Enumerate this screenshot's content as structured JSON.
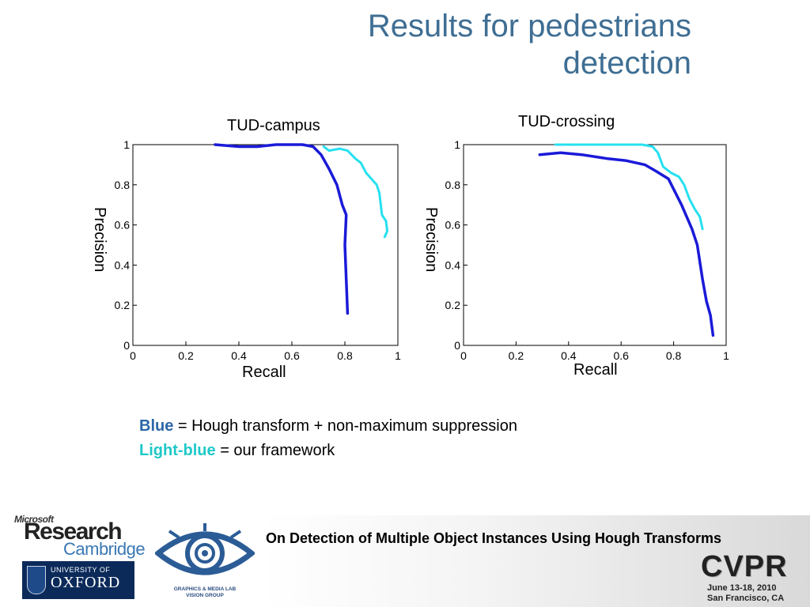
{
  "slide_title_line1": "Results for pedestrians",
  "slide_title_line2": "detection",
  "chart_data": [
    {
      "type": "line",
      "title": "TUD-campus",
      "xlabel": "Recall",
      "ylabel": "Precision",
      "xlim": [
        0,
        1
      ],
      "ylim": [
        0,
        1
      ],
      "xticks": [
        "0",
        "0.2",
        "0.4",
        "0.6",
        "0.8",
        "1"
      ],
      "yticks": [
        "0",
        "0.2",
        "0.4",
        "0.6",
        "0.8",
        "1"
      ],
      "grid": false,
      "series": [
        {
          "color": "#1a1ad9",
          "points": [
            [
              0.31,
              1.0
            ],
            [
              0.4,
              0.99
            ],
            [
              0.47,
              0.99
            ],
            [
              0.54,
              1.0
            ],
            [
              0.58,
              1.0
            ],
            [
              0.64,
              1.0
            ],
            [
              0.68,
              0.99
            ],
            [
              0.71,
              0.95
            ],
            [
              0.74,
              0.88
            ],
            [
              0.77,
              0.8
            ],
            [
              0.79,
              0.7
            ],
            [
              0.805,
              0.65
            ],
            [
              0.8,
              0.5
            ],
            [
              0.805,
              0.33
            ],
            [
              0.81,
              0.16
            ]
          ]
        },
        {
          "color": "#27e0f0",
          "points": [
            [
              0.72,
              0.99
            ],
            [
              0.74,
              0.97
            ],
            [
              0.78,
              0.98
            ],
            [
              0.81,
              0.97
            ],
            [
              0.84,
              0.93
            ],
            [
              0.86,
              0.91
            ],
            [
              0.88,
              0.86
            ],
            [
              0.9,
              0.83
            ],
            [
              0.92,
              0.8
            ],
            [
              0.93,
              0.76
            ],
            [
              0.94,
              0.65
            ],
            [
              0.955,
              0.62
            ],
            [
              0.96,
              0.57
            ],
            [
              0.95,
              0.54
            ]
          ]
        }
      ]
    },
    {
      "type": "line",
      "title": "TUD-crossing",
      "xlabel": "Recall",
      "ylabel": "Precision",
      "xlim": [
        0,
        1
      ],
      "ylim": [
        0,
        1
      ],
      "xticks": [
        "0",
        "0.2",
        "0.4",
        "0.6",
        "0.8",
        "1"
      ],
      "yticks": [
        "0",
        "0.2",
        "0.4",
        "0.6",
        "0.8",
        "1"
      ],
      "grid": false,
      "series": [
        {
          "color": "#1a1ad9",
          "points": [
            [
              0.29,
              0.95
            ],
            [
              0.37,
              0.96
            ],
            [
              0.45,
              0.95
            ],
            [
              0.55,
              0.93
            ],
            [
              0.62,
              0.92
            ],
            [
              0.69,
              0.9
            ],
            [
              0.73,
              0.87
            ],
            [
              0.78,
              0.83
            ],
            [
              0.83,
              0.7
            ],
            [
              0.87,
              0.58
            ],
            [
              0.89,
              0.5
            ],
            [
              0.91,
              0.33
            ],
            [
              0.925,
              0.22
            ],
            [
              0.94,
              0.15
            ],
            [
              0.95,
              0.05
            ]
          ]
        },
        {
          "color": "#27e0f0",
          "points": [
            [
              0.35,
              1.0
            ],
            [
              0.5,
              1.0
            ],
            [
              0.6,
              1.0
            ],
            [
              0.68,
              1.0
            ],
            [
              0.72,
              0.99
            ],
            [
              0.74,
              0.96
            ],
            [
              0.76,
              0.89
            ],
            [
              0.79,
              0.86
            ],
            [
              0.82,
              0.84
            ],
            [
              0.84,
              0.8
            ],
            [
              0.86,
              0.73
            ],
            [
              0.88,
              0.68
            ],
            [
              0.9,
              0.64
            ],
            [
              0.91,
              0.58
            ]
          ]
        }
      ]
    }
  ],
  "legend": {
    "blue_word": "Blue",
    "blue_text": " = Hough transform + non-maximum suppression",
    "lightblue_word": "Light-blue",
    "lightblue_text": " = our framework"
  },
  "footer": {
    "paper_title": "On Detection of Multiple Object Instances Using Hough Transforms",
    "microsoft": "Microsoft",
    "research": "Research",
    "cambridge": "Cambridge",
    "university_of": "UNIVERSITY OF",
    "oxford": "OXFORD",
    "gml_line1": "GRAPHICS & MEDIA LAB",
    "gml_line2": "VISION GROUP",
    "cvpr": "CVPR",
    "cvpr_dates": "June 13-18, 2010",
    "cvpr_place": "San Francisco, CA"
  },
  "colors": {
    "title": "#3f6e93",
    "blue_series": "#1a1ad9",
    "lightblue_series": "#27e0f0",
    "legend_blue": "#2b66a7",
    "legend_lightblue": "#1fc8c8"
  }
}
